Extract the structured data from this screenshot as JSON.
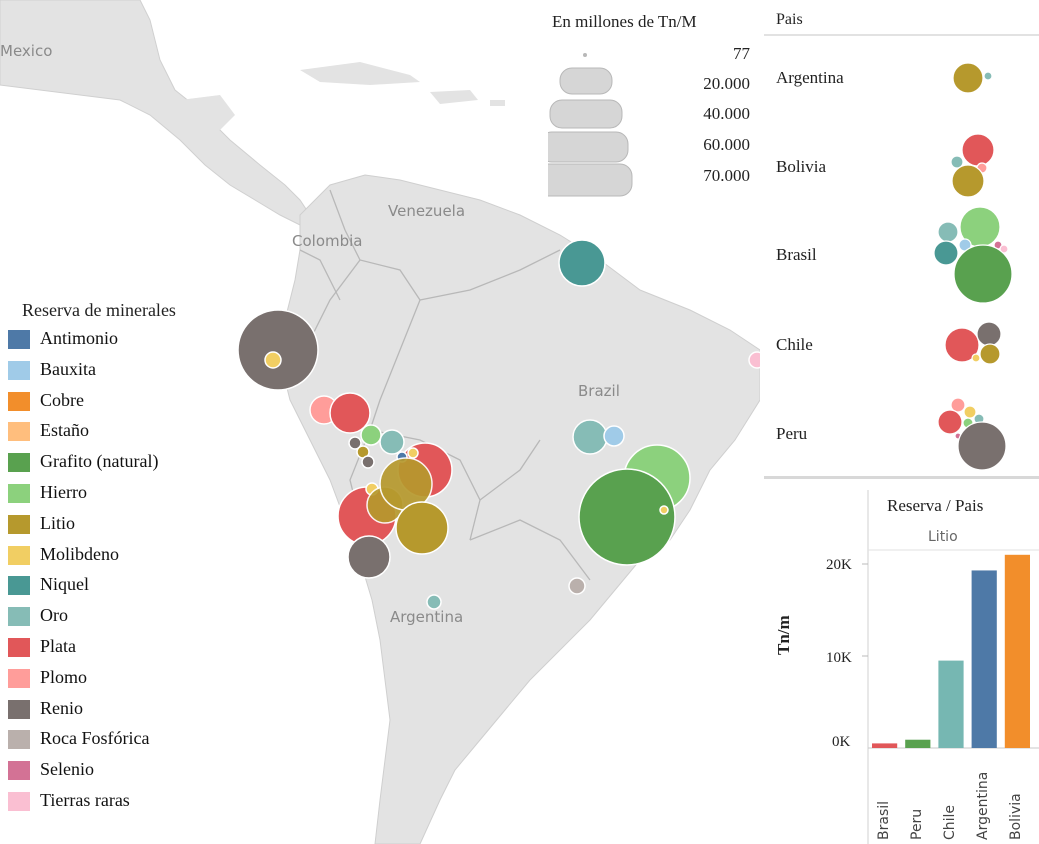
{
  "colors": {
    "Antimonio": "#4e79a7",
    "Bauxita": "#a0cbe8",
    "Cobre": "#f28e2b",
    "Estaño": "#ffbe7d",
    "Grafito (natural)": "#59a14f",
    "Hierro": "#8cd17d",
    "Litio": "#b6992d",
    "Molibdeno": "#f1ce63",
    "Niquel": "#499894",
    "Oro": "#86bcb6",
    "Plata": "#e15759",
    "Plomo": "#ff9d9a",
    "Renio": "#79706e",
    "Roca Fosfórica": "#bab0ac",
    "Selenio": "#d37295",
    "Tierras raras": "#fabfd2"
  },
  "map": {
    "labels": [
      "Mexico",
      "Venezuela",
      "Colombia",
      "Brazil",
      "Argentina"
    ]
  },
  "size_legend": {
    "title": "En millones  de Tn/M",
    "items": [
      {
        "label": "77",
        "value": 77
      },
      {
        "label": "20.000",
        "value": 20000
      },
      {
        "label": "40.000",
        "value": 40000
      },
      {
        "label": "60.000",
        "value": 60000
      },
      {
        "label": "70.000",
        "value": 70000
      }
    ]
  },
  "mineral_legend": {
    "title": "Reserva de minerales",
    "items": [
      "Antimonio",
      "Bauxita",
      "Cobre",
      "Estaño",
      "Grafito (natural)",
      "Hierro",
      "Litio",
      "Molibdeno",
      "Niquel",
      "Oro",
      "Plata",
      "Plomo",
      "Renio",
      "Roca Fosfórica",
      "Selenio",
      "Tierras raras"
    ]
  },
  "pais_panel": {
    "header": "Pais",
    "countries": [
      "Argentina",
      "Bolivia",
      "Brasil",
      "Chile",
      "Peru"
    ]
  },
  "chart_data": {
    "type": "bar",
    "title": "Reserva  /  Pais",
    "subtitle": "Litio",
    "ylabel": "Tn/m",
    "yticks": [
      "20K",
      "10K",
      "0K"
    ],
    "ylim": [
      0,
      22000
    ],
    "categories": [
      "Brasil",
      "Peru",
      "Chile",
      "Argentina",
      "Bolivia"
    ],
    "values": [
      500,
      900,
      9500,
      19300,
      21000
    ],
    "bar_colors": [
      "#e15759",
      "#59a14f",
      "#76b7b2",
      "#4e79a7",
      "#f28e2b"
    ]
  }
}
